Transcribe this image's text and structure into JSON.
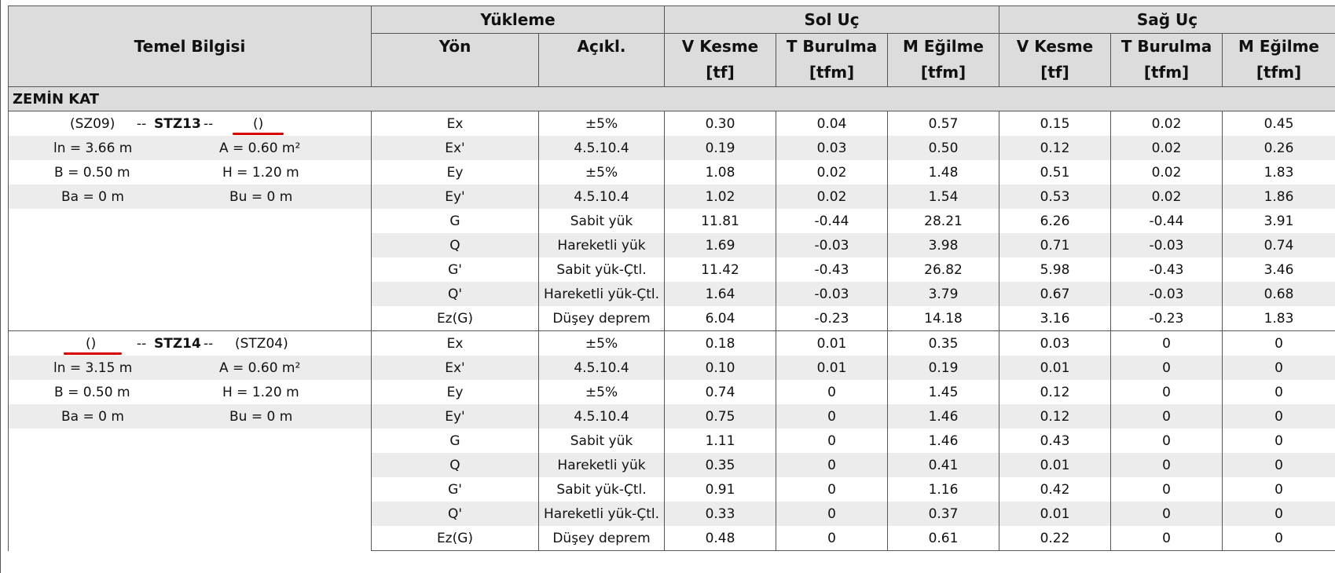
{
  "headers": {
    "temel": "Temel Bilgisi",
    "yukleme": "Yükleme",
    "sol": "Sol Uç",
    "sag": "Sağ Uç",
    "yon": "Yön",
    "acikl": "Açıkl.",
    "v_kesme": "V Kesme",
    "t_burulma": "T Burulma",
    "m_egilme": "M Eğilme",
    "u_tf": "[tf]",
    "u_tfm": "[tfm]"
  },
  "section": "ZEMİN KAT",
  "groups": [
    {
      "info": {
        "left_name": "(SZ09)",
        "dash1": "--",
        "stz": "STZ13",
        "dash2": "--",
        "right_name": "()",
        "ln": "ln = 3.66 m",
        "A": "A = 0.60 m²",
        "B": "B = 0.50 m",
        "H": "H = 1.20 m",
        "Ba": "Ba = 0 m",
        "Bu": "Bu = 0 m"
      },
      "rows": [
        [
          "Ex",
          "±5%",
          "0.30",
          "0.04",
          "0.57",
          "0.15",
          "0.02",
          "0.45"
        ],
        [
          "Ex'",
          "4.5.10.4",
          "0.19",
          "0.03",
          "0.50",
          "0.12",
          "0.02",
          "0.26"
        ],
        [
          "Ey",
          "±5%",
          "1.08",
          "0.02",
          "1.48",
          "0.51",
          "0.02",
          "1.83"
        ],
        [
          "Ey'",
          "4.5.10.4",
          "1.02",
          "0.02",
          "1.54",
          "0.53",
          "0.02",
          "1.86"
        ],
        [
          "G",
          "Sabit yük",
          "11.81",
          "-0.44",
          "28.21",
          "6.26",
          "-0.44",
          "3.91"
        ],
        [
          "Q",
          "Hareketli yük",
          "1.69",
          "-0.03",
          "3.98",
          "0.71",
          "-0.03",
          "0.74"
        ],
        [
          "G'",
          "Sabit yük-Çtl.",
          "11.42",
          "-0.43",
          "26.82",
          "5.98",
          "-0.43",
          "3.46"
        ],
        [
          "Q'",
          "Hareketli yük-Çtl.",
          "1.64",
          "-0.03",
          "3.79",
          "0.67",
          "-0.03",
          "0.68"
        ],
        [
          "Ez(G)",
          "Düşey deprem",
          "6.04",
          "-0.23",
          "14.18",
          "3.16",
          "-0.23",
          "1.83"
        ]
      ]
    },
    {
      "info": {
        "left_name": "()",
        "dash1": "--",
        "stz": "STZ14",
        "dash2": "--",
        "right_name": "(STZ04)",
        "ln": "ln = 3.15 m",
        "A": "A = 0.60 m²",
        "B": "B = 0.50 m",
        "H": "H = 1.20 m",
        "Ba": "Ba = 0 m",
        "Bu": "Bu = 0 m"
      },
      "rows": [
        [
          "Ex",
          "±5%",
          "0.18",
          "0.01",
          "0.35",
          "0.03",
          "0",
          "0"
        ],
        [
          "Ex'",
          "4.5.10.4",
          "0.10",
          "0.01",
          "0.19",
          "0.01",
          "0",
          "0"
        ],
        [
          "Ey",
          "±5%",
          "0.74",
          "0",
          "1.45",
          "0.12",
          "0",
          "0"
        ],
        [
          "Ey'",
          "4.5.10.4",
          "0.75",
          "0",
          "1.46",
          "0.12",
          "0",
          "0"
        ],
        [
          "G",
          "Sabit yük",
          "1.11",
          "0",
          "1.46",
          "0.43",
          "0",
          "0"
        ],
        [
          "Q",
          "Hareketli yük",
          "0.35",
          "0",
          "0.41",
          "0.01",
          "0",
          "0"
        ],
        [
          "G'",
          "Sabit yük-Çtl.",
          "0.91",
          "0",
          "1.16",
          "0.42",
          "0",
          "0"
        ],
        [
          "Q'",
          "Hareketli yük-Çtl.",
          "0.33",
          "0",
          "0.37",
          "0.01",
          "0",
          "0"
        ],
        [
          "Ez(G)",
          "Düşey deprem",
          "0.48",
          "0",
          "0.61",
          "0.22",
          "0",
          "0"
        ]
      ]
    }
  ]
}
